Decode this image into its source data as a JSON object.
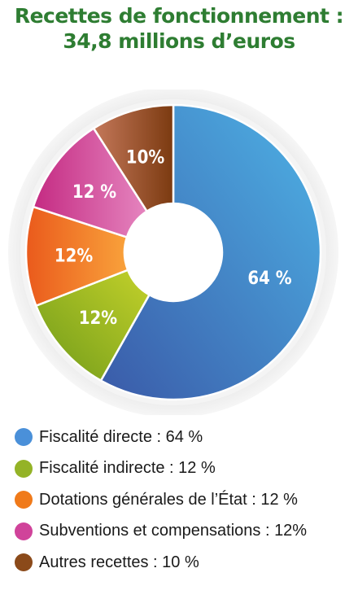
{
  "title": {
    "line1": "Recettes de fonctionnement :",
    "line2": "34,8 millions d’euros"
  },
  "chart_data": {
    "type": "pie",
    "donut": true,
    "title": "Recettes de fonctionnement : 34,8 millions d’euros",
    "slices": [
      {
        "name": "Fiscalité directe",
        "value": 64,
        "label": "64 %",
        "color": "#4a90d9",
        "legend": "Fiscalité directe : 64 %"
      },
      {
        "name": "Fiscalité indirecte",
        "value": 12,
        "label": "12%",
        "color": "#94b327",
        "legend": "Fiscalité indirecte : 12 %"
      },
      {
        "name": "Dotations générales de l’État",
        "value": 12,
        "label": "12%",
        "color": "#f07a1a",
        "legend": "Dotations générales de l’État : 12 %"
      },
      {
        "name": "Subventions et compensations",
        "value": 12,
        "label": "12 %",
        "color": "#d0439a",
        "legend": "Subventions et compensations : 12%"
      },
      {
        "name": "Autres recettes",
        "value": 10,
        "label": "10%",
        "color": "#8b4a1a",
        "legend": "Autres recettes : 10 %"
      }
    ],
    "legend_position": "bottom"
  }
}
